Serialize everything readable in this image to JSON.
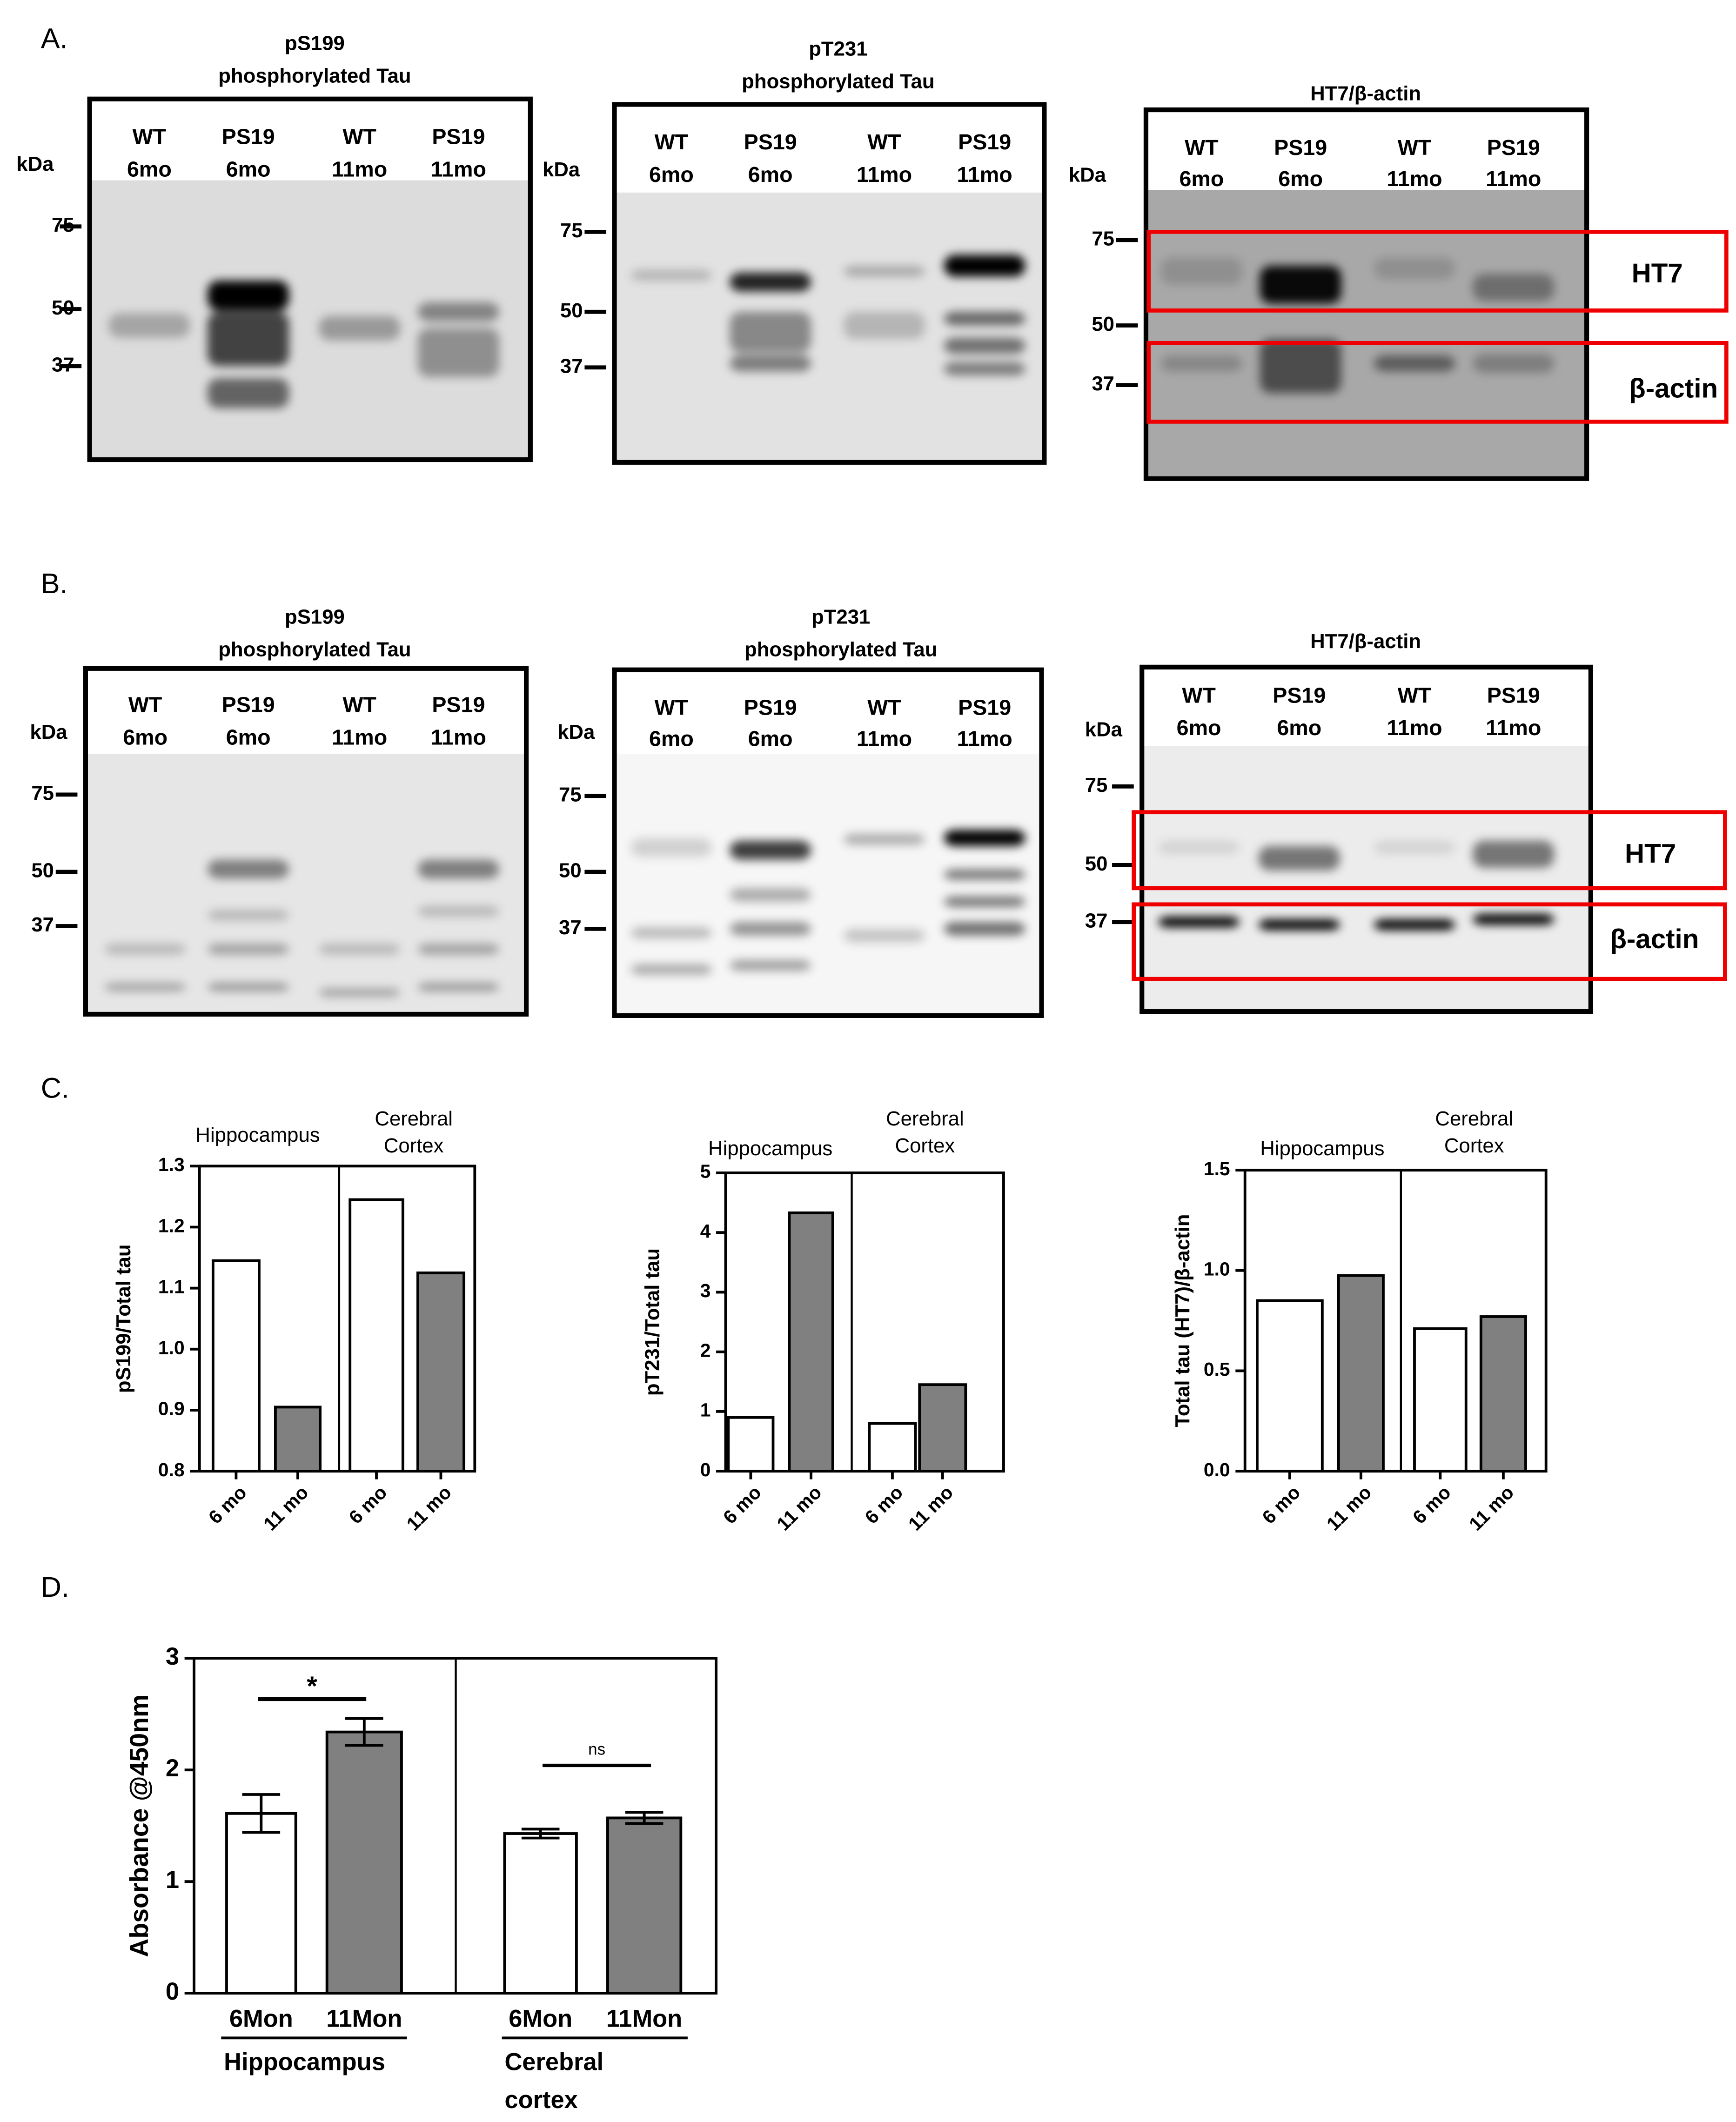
{
  "panel_labels": [
    "A.",
    "B.",
    "C.",
    "D."
  ],
  "blots": [
    {
      "title": [
        "pS199",
        "phosphorylated Tau"
      ],
      "kda": "kDa",
      "markers": [
        "75",
        "50",
        "37"
      ],
      "lanes": [
        [
          "WT",
          "6mo"
        ],
        [
          "PS19",
          "6mo"
        ],
        [
          "WT",
          "11mo"
        ],
        [
          "PS19",
          "11mo"
        ]
      ]
    },
    {
      "title": [
        "pT231",
        "phosphorylated Tau"
      ],
      "kda": "kDa",
      "markers": [
        "75",
        "50",
        "37"
      ],
      "lanes": [
        [
          "WT",
          "6mo"
        ],
        [
          "PS19",
          "6mo"
        ],
        [
          "WT",
          "11mo"
        ],
        [
          "PS19",
          "11mo"
        ]
      ]
    },
    {
      "title": [
        "HT7/β-actin"
      ],
      "kda": "kDa",
      "markers": [
        "75",
        "50",
        "37"
      ],
      "lanes": [
        [
          "WT",
          "6mo"
        ],
        [
          "PS19",
          "6mo"
        ],
        [
          "WT",
          "11mo"
        ],
        [
          "PS19",
          "11mo"
        ]
      ],
      "box_labels": [
        "HT7",
        "β-actin"
      ]
    },
    {
      "title": [
        "pS199",
        "phosphorylated Tau"
      ],
      "kda": "kDa",
      "markers": [
        "75",
        "50",
        "37"
      ],
      "lanes": [
        [
          "WT",
          "6mo"
        ],
        [
          "PS19",
          "6mo"
        ],
        [
          "WT",
          "11mo"
        ],
        [
          "PS19",
          "11mo"
        ]
      ]
    },
    {
      "title": [
        "pT231",
        "phosphorylated Tau"
      ],
      "kda": "kDa",
      "markers": [
        "75",
        "50",
        "37"
      ],
      "lanes": [
        [
          "WT",
          "6mo"
        ],
        [
          "PS19",
          "6mo"
        ],
        [
          "WT",
          "11mo"
        ],
        [
          "PS19",
          "11mo"
        ]
      ]
    },
    {
      "title": [
        "HT7/β-actin"
      ],
      "kda": "kDa",
      "markers": [
        "75",
        "50",
        "37"
      ],
      "lanes": [
        [
          "WT",
          "6mo"
        ],
        [
          "PS19",
          "6mo"
        ],
        [
          "WT",
          "11mo"
        ],
        [
          "PS19",
          "11mo"
        ]
      ],
      "box_labels": [
        "HT7",
        "β-actin"
      ]
    }
  ],
  "chart_data": [
    {
      "type": "bar",
      "y_label": "pS199/Total tau",
      "ylim": [
        0.8,
        1.3
      ],
      "yticks": [
        0.8,
        0.9,
        {
          "value": 1,
          "label": "1.0"
        },
        1.1,
        1.2,
        1.3
      ],
      "groups": [
        [
          "Hippocampus"
        ],
        [
          "Cerebral",
          "Cortex"
        ]
      ],
      "categories": [
        "6 mo",
        "11 mo",
        "6 mo",
        "11 mo"
      ],
      "values": [
        1.145,
        0.905,
        1.245,
        1.125
      ],
      "colors": [
        "#ffffff",
        "#808080",
        "#ffffff",
        "#808080"
      ]
    },
    {
      "type": "bar",
      "y_label": "pT231/Total tau",
      "ylim": [
        0,
        5
      ],
      "yticks": [
        0,
        1,
        2,
        3,
        4,
        5
      ],
      "groups": [
        [
          "Hippocampus"
        ],
        [
          "Cerebral",
          "Cortex"
        ]
      ],
      "categories": [
        "6 mo",
        "11 mo",
        "6 mo",
        "11 mo"
      ],
      "values": [
        0.9,
        4.33,
        0.8,
        1.45
      ],
      "colors": [
        "#ffffff",
        "#808080",
        "#ffffff",
        "#808080"
      ]
    },
    {
      "type": "bar",
      "y_label": "Total tau (HT7)/β-actin",
      "ylim": [
        0,
        1.5
      ],
      "yticks": [
        {
          "value": 0,
          "label": "0.0"
        },
        0.5,
        {
          "value": 1,
          "label": "1.0"
        },
        1.5
      ],
      "groups": [
        [
          "Hippocampus"
        ],
        [
          "Cerebral",
          "Cortex"
        ]
      ],
      "categories": [
        "6 mo",
        "11 mo",
        "6 mo",
        "11 mo"
      ],
      "values": [
        0.85,
        0.975,
        0.71,
        0.77
      ],
      "colors": [
        "#ffffff",
        "#808080",
        "#ffffff",
        "#808080"
      ]
    },
    {
      "type": "bar",
      "y_label": "Absorbance @450nm",
      "ylim": [
        0,
        3
      ],
      "yticks": [
        0,
        1,
        2,
        3
      ],
      "groups": [
        [
          "Hippocampus"
        ],
        [
          "Cerebral",
          "cortex"
        ]
      ],
      "categories": [
        "6Mon",
        "11Mon",
        "6Mon",
        "11Mon"
      ],
      "values": [
        1.61,
        2.34,
        1.43,
        1.57
      ],
      "errors": [
        0.17,
        0.12,
        0.04,
        0.05
      ],
      "colors": [
        "#ffffff",
        "#808080",
        "#ffffff",
        "#808080"
      ],
      "annotations": [
        "*",
        "ns"
      ]
    }
  ]
}
